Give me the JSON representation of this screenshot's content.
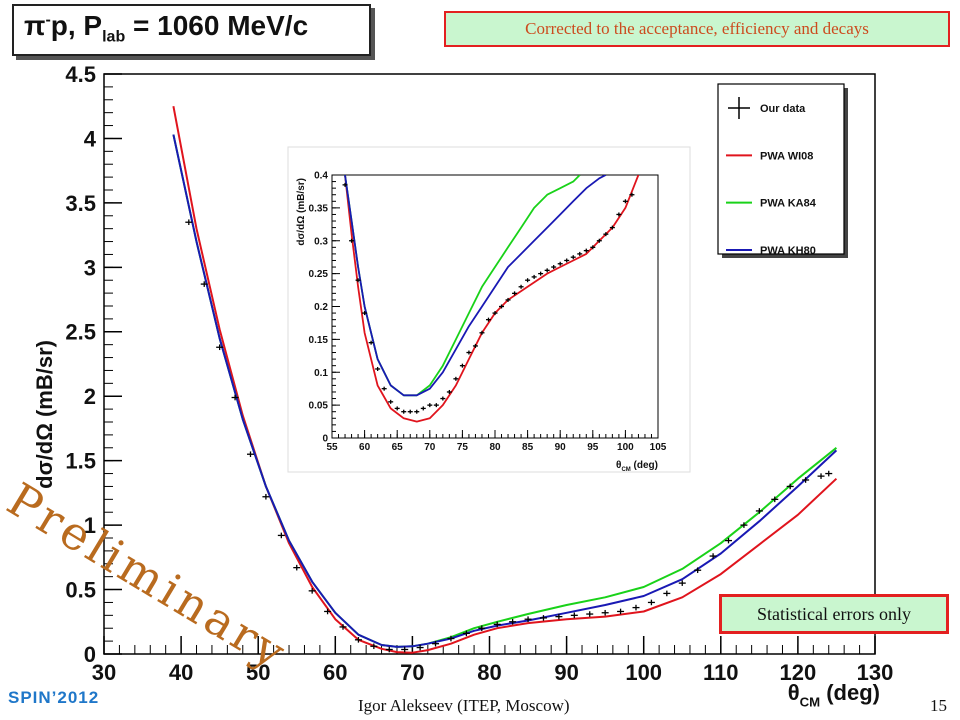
{
  "slide": {
    "title_pre": "π",
    "title_sup": "-",
    "title_mid": "p, P",
    "title_sub": "lab",
    "title_post": " = 1060 MeV/c",
    "note": "Corrected to the acceptance, efficiency and decays",
    "stat_note": "Statistical errors only",
    "watermark": "Preliminary",
    "conference": "SPIN’2012",
    "author": "Igor Alekseev (ITEP, Moscow)",
    "page": "15"
  },
  "colors": {
    "wi08": "#e0141d",
    "ka84": "#19d219",
    "kh80": "#1919b4",
    "data": "#000000",
    "note_bg": "#c9f6cf",
    "note_border": "#e32020",
    "conference": "#1f77c9",
    "watermark": "#b96b1f"
  },
  "chart_data": [
    {
      "type": "line",
      "xlabel": "θCM (deg)",
      "ylabel": "dσ/dΩ (mB/sr)",
      "xlim": [
        30,
        130
      ],
      "ylim": [
        0,
        4.5
      ],
      "xticks": [
        "30",
        "40",
        "50",
        "60",
        "70",
        "80",
        "90",
        "100",
        "110",
        "120",
        "130"
      ],
      "yticks": [
        "0",
        "0.5",
        "1",
        "1.5",
        "2",
        "2.5",
        "3",
        "3.5",
        "4",
        "4.5"
      ],
      "legend_position": "top-right",
      "legend": [
        "Our data",
        "PWA WI08",
        "PWA KA84",
        "PWA KH80"
      ],
      "series": [
        {
          "name": "PWA WI08",
          "x": [
            39,
            42,
            45,
            48,
            51,
            54,
            57,
            60,
            63,
            66,
            68,
            70,
            72,
            75,
            78,
            81,
            85,
            90,
            95,
            100,
            105,
            110,
            115,
            120,
            125
          ],
          "values": [
            4.25,
            3.3,
            2.52,
            1.85,
            1.3,
            0.86,
            0.52,
            0.27,
            0.11,
            0.04,
            0.015,
            0.01,
            0.03,
            0.08,
            0.15,
            0.2,
            0.24,
            0.27,
            0.29,
            0.33,
            0.44,
            0.62,
            0.85,
            1.08,
            1.36
          ]
        },
        {
          "name": "PWA KA84",
          "x": [
            39,
            42,
            45,
            48,
            51,
            54,
            57,
            60,
            63,
            66,
            68,
            70,
            72,
            75,
            78,
            81,
            85,
            90,
            95,
            100,
            105,
            110,
            115,
            120,
            125
          ],
          "values": [
            4.03,
            3.2,
            2.45,
            1.82,
            1.3,
            0.88,
            0.56,
            0.32,
            0.15,
            0.07,
            0.055,
            0.06,
            0.08,
            0.13,
            0.2,
            0.25,
            0.31,
            0.38,
            0.44,
            0.52,
            0.66,
            0.86,
            1.1,
            1.36,
            1.6
          ]
        },
        {
          "name": "PWA KH80",
          "x": [
            39,
            42,
            45,
            48,
            51,
            54,
            57,
            60,
            63,
            66,
            68,
            70,
            72,
            75,
            78,
            81,
            85,
            90,
            95,
            100,
            105,
            110,
            115,
            120,
            125
          ],
          "values": [
            4.03,
            3.2,
            2.45,
            1.82,
            1.3,
            0.88,
            0.56,
            0.32,
            0.15,
            0.07,
            0.055,
            0.06,
            0.08,
            0.12,
            0.18,
            0.22,
            0.26,
            0.32,
            0.38,
            0.45,
            0.58,
            0.78,
            1.03,
            1.3,
            1.58
          ]
        },
        {
          "name": "Our data",
          "x": [
            41,
            43,
            45,
            47,
            49,
            51,
            53,
            55,
            57,
            59,
            61,
            63,
            65,
            67,
            69,
            71,
            73,
            75,
            77,
            79,
            81,
            83,
            85,
            87,
            89,
            91,
            93,
            95,
            97,
            99,
            101,
            103,
            105,
            107,
            109,
            111,
            113,
            115,
            117,
            119,
            121,
            123,
            124
          ],
          "values": [
            3.35,
            2.87,
            2.38,
            1.99,
            1.55,
            1.22,
            0.92,
            0.67,
            0.49,
            0.33,
            0.21,
            0.11,
            0.06,
            0.035,
            0.035,
            0.05,
            0.08,
            0.12,
            0.16,
            0.2,
            0.23,
            0.25,
            0.27,
            0.28,
            0.29,
            0.3,
            0.31,
            0.32,
            0.33,
            0.36,
            0.4,
            0.47,
            0.55,
            0.65,
            0.76,
            0.88,
            1.0,
            1.11,
            1.2,
            1.3,
            1.35,
            1.38,
            1.4
          ]
        }
      ]
    },
    {
      "type": "line",
      "xlabel": "θCM (deg)",
      "ylabel": "dσ/dΩ (mB/sr)",
      "xlim": [
        55,
        105
      ],
      "ylim": [
        0,
        0.4
      ],
      "xticks": [
        "55",
        "60",
        "65",
        "70",
        "75",
        "80",
        "85",
        "90",
        "95",
        "100",
        "105"
      ],
      "yticks": [
        "0",
        "0.05",
        "0.1",
        "0.15",
        "0.2",
        "0.25",
        "0.3",
        "0.35",
        "0.4"
      ],
      "series": [
        {
          "name": "PWA WI08",
          "x": [
            57,
            58,
            59,
            60,
            62,
            64,
            66,
            68,
            70,
            72,
            74,
            76,
            78,
            80,
            82,
            85,
            88,
            90,
            92,
            94,
            96,
            98,
            100,
            102
          ],
          "values": [
            0.4,
            0.31,
            0.23,
            0.16,
            0.08,
            0.045,
            0.03,
            0.025,
            0.03,
            0.05,
            0.08,
            0.12,
            0.16,
            0.19,
            0.21,
            0.23,
            0.25,
            0.26,
            0.27,
            0.28,
            0.3,
            0.32,
            0.35,
            0.4
          ]
        },
        {
          "name": "PWA KA84",
          "x": [
            57,
            58,
            59,
            60,
            62,
            64,
            66,
            68,
            70,
            72,
            74,
            76,
            78,
            80,
            82,
            84,
            86,
            88,
            90,
            92,
            93
          ],
          "values": [
            0.4,
            0.33,
            0.26,
            0.2,
            0.12,
            0.08,
            0.065,
            0.065,
            0.08,
            0.11,
            0.15,
            0.19,
            0.23,
            0.26,
            0.29,
            0.32,
            0.35,
            0.37,
            0.38,
            0.39,
            0.4
          ]
        },
        {
          "name": "PWA KH80",
          "x": [
            57,
            58,
            59,
            60,
            62,
            64,
            66,
            68,
            70,
            72,
            74,
            76,
            78,
            80,
            82,
            84,
            86,
            88,
            90,
            92,
            94,
            96,
            97
          ],
          "values": [
            0.4,
            0.33,
            0.26,
            0.2,
            0.12,
            0.08,
            0.065,
            0.065,
            0.075,
            0.1,
            0.135,
            0.17,
            0.2,
            0.23,
            0.26,
            0.28,
            0.3,
            0.32,
            0.34,
            0.36,
            0.38,
            0.395,
            0.4
          ]
        },
        {
          "name": "Our data",
          "x": [
            57,
            58,
            59,
            60,
            61,
            62,
            63,
            64,
            65,
            66,
            67,
            68,
            69,
            70,
            71,
            72,
            73,
            74,
            75,
            76,
            77,
            78,
            79,
            80,
            81,
            82,
            83,
            84,
            85,
            86,
            87,
            88,
            89,
            90,
            91,
            92,
            93,
            94,
            95,
            96,
            97,
            98,
            99,
            100,
            101
          ],
          "values": [
            0.385,
            0.3,
            0.24,
            0.19,
            0.145,
            0.105,
            0.075,
            0.055,
            0.045,
            0.04,
            0.04,
            0.04,
            0.045,
            0.05,
            0.05,
            0.06,
            0.07,
            0.09,
            0.11,
            0.13,
            0.14,
            0.16,
            0.18,
            0.19,
            0.2,
            0.21,
            0.22,
            0.23,
            0.24,
            0.245,
            0.25,
            0.255,
            0.26,
            0.265,
            0.27,
            0.275,
            0.28,
            0.285,
            0.29,
            0.3,
            0.31,
            0.32,
            0.34,
            0.36,
            0.37
          ]
        }
      ]
    }
  ]
}
